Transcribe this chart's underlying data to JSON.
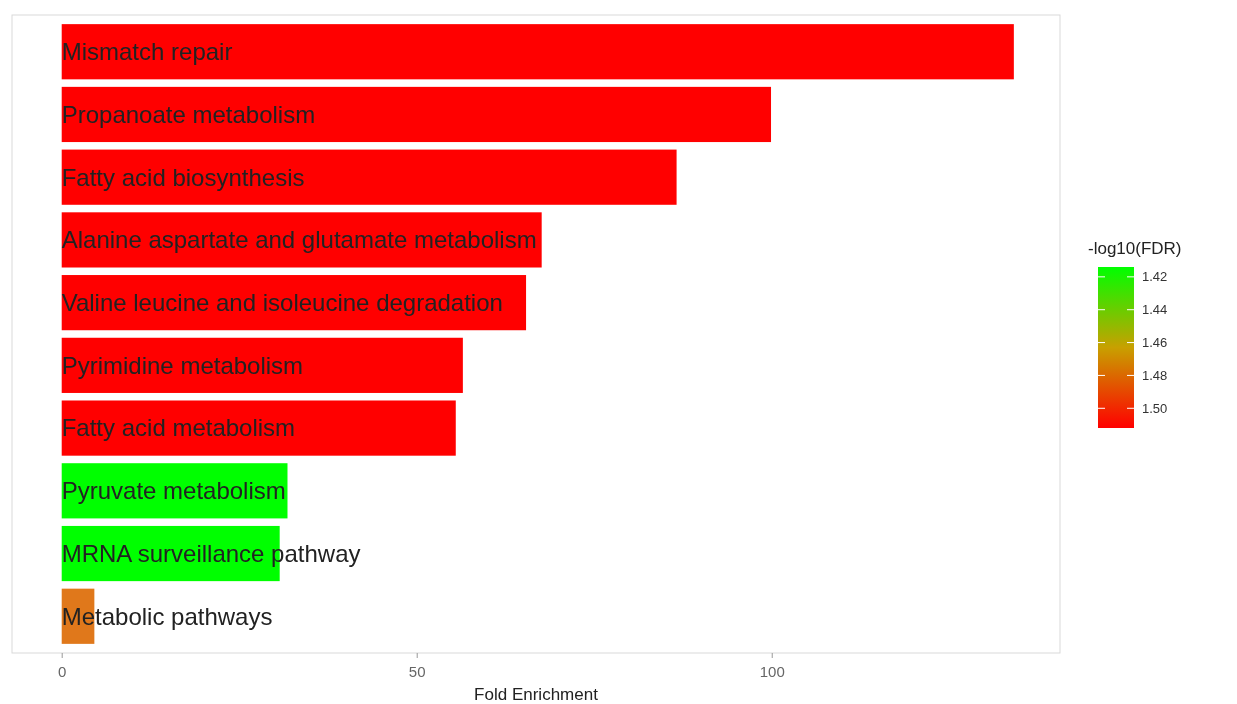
{
  "chart_data": {
    "type": "bar",
    "orientation": "horizontal",
    "xlabel": "Fold Enrichment",
    "categories": [
      "Mismatch repair",
      "Propanoate metabolism",
      "Fatty acid biosynthesis",
      "Alanine aspartate and glutamate metabolism",
      "Valine leucine and isoleucine degradation",
      "Pyrimidine metabolism",
      "Fatty acid metabolism",
      "Pyruvate metabolism",
      "MRNA surveillance pathway",
      "Metabolic pathways"
    ],
    "values": [
      134.1,
      99.9,
      86.6,
      67.6,
      65.4,
      56.5,
      55.5,
      31.8,
      30.7,
      4.6
    ],
    "colors": [
      "#ff0000",
      "#ff0000",
      "#ff0000",
      "#ff0000",
      "#ff0000",
      "#ff0000",
      "#ff0000",
      "#00ff00",
      "#00ff00",
      "#e0781b"
    ],
    "xlim": [
      -7,
      140.6
    ],
    "xticks": [
      0,
      50,
      100
    ],
    "clabel": "-log10(FDR)",
    "clim": [
      1.414,
      1.512
    ],
    "cticks": [
      {
        "value": 1.42,
        "label": "1.42"
      },
      {
        "value": 1.44,
        "label": "1.44"
      },
      {
        "value": 1.46,
        "label": "1.46"
      },
      {
        "value": 1.48,
        "label": "1.48"
      },
      {
        "value": 1.5,
        "label": "1.50"
      }
    ],
    "tick_labels": "x",
    "grid": false
  }
}
